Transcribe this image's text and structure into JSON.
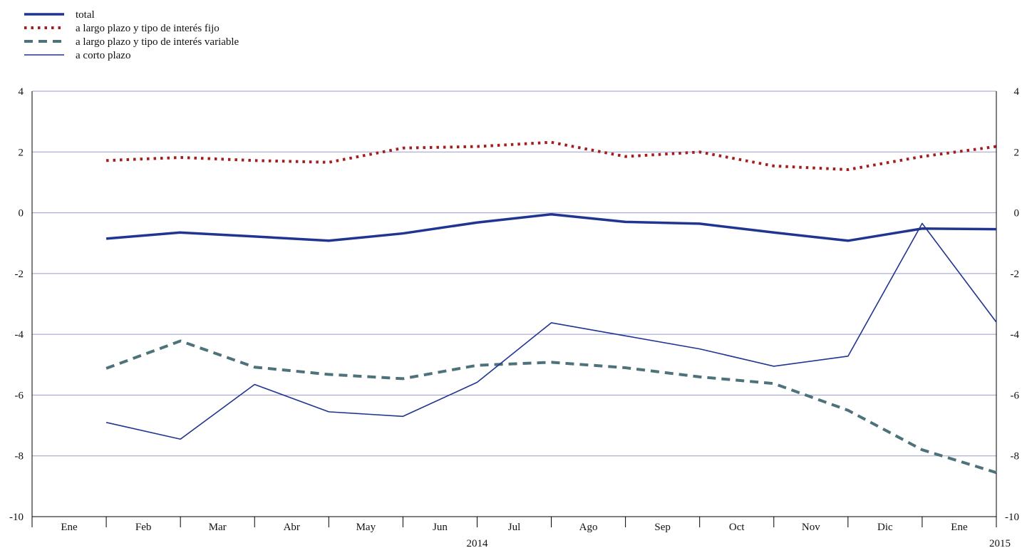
{
  "chart_data": {
    "type": "line",
    "title": "",
    "xlabel": "",
    "ylabel": "",
    "ylim": [
      -10,
      4
    ],
    "yticks": [
      4,
      2,
      0,
      -2,
      -4,
      -6,
      -8,
      -10
    ],
    "grid": true,
    "legend_position": "top-left",
    "months": [
      "Ene",
      "Feb",
      "Mar",
      "Abr",
      "May",
      "Jun",
      "Jul",
      "Ago",
      "Sep",
      "Oct",
      "Nov",
      "Dic",
      "Ene"
    ],
    "year_labels": [
      "2014",
      "2015"
    ],
    "x": [
      "2014-01",
      "2014-02",
      "2014-03",
      "2014-04",
      "2014-05",
      "2014-06",
      "2014-07",
      "2014-08",
      "2014-09",
      "2014-10",
      "2014-11",
      "2014-12",
      "2015-01"
    ],
    "series": [
      {
        "name": "total",
        "color": "#1f3591",
        "style": "solid-thick",
        "values": [
          -0.85,
          -0.65,
          -0.78,
          -0.92,
          -0.68,
          -0.32,
          -0.05,
          -0.3,
          -0.36,
          -0.65,
          -0.92,
          -0.52,
          -0.54
        ]
      },
      {
        "name": "a largo plazo y tipo de interés fijo",
        "color": "#a31d1d",
        "style": "dotted",
        "values": [
          1.72,
          1.82,
          1.72,
          1.66,
          2.13,
          2.18,
          2.32,
          1.85,
          2.0,
          1.54,
          1.42,
          1.85,
          2.18
        ]
      },
      {
        "name": "a largo plazo y tipo de interés variable",
        "color": "#4e727a",
        "style": "dashed",
        "values": [
          -5.12,
          -4.22,
          -5.08,
          -5.32,
          -5.46,
          -5.02,
          -4.92,
          -5.1,
          -5.4,
          -5.62,
          -6.5,
          -7.8,
          -8.55
        ]
      },
      {
        "name": "a corto plazo",
        "color": "#1f3591",
        "style": "solid-thin",
        "values": [
          -6.9,
          -7.45,
          -5.65,
          -6.55,
          -6.7,
          -5.58,
          -3.62,
          -4.05,
          -4.48,
          -5.05,
          -4.72,
          -0.35,
          -3.6
        ]
      }
    ]
  }
}
